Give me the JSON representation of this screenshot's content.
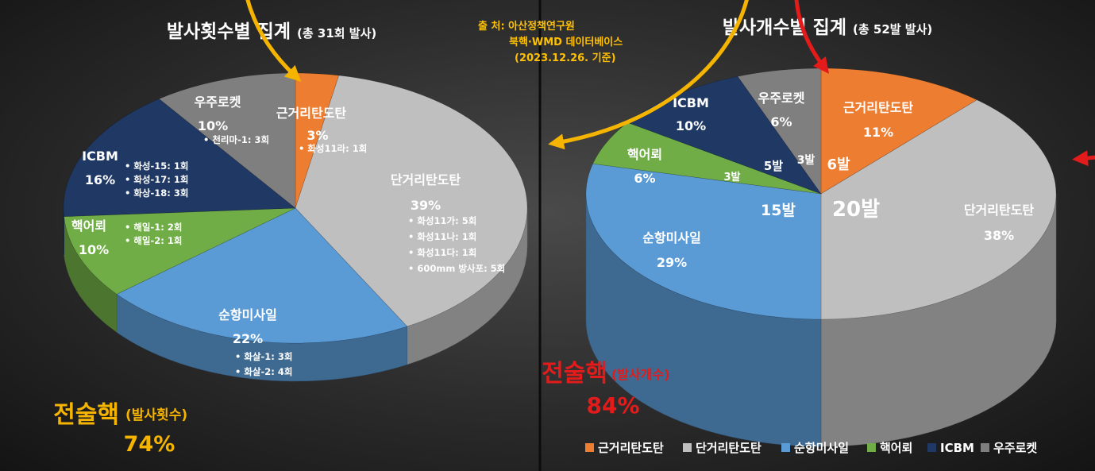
{
  "source": {
    "line1": "출  처: 아산정책연구원",
    "line2": "북핵·WMD 데이터베이스",
    "line3": "(2023.12.26. 기준)"
  },
  "legend": [
    "근거리탄도탄",
    "단거리탄도탄",
    "순항미사일",
    "핵어뢰",
    "ICBM",
    "우주로켓"
  ],
  "colors": {
    "srbm_short": "#ed7d31",
    "srbm": "#bfbfbf",
    "cruise": "#5b9bd5",
    "torpedo": "#70ad47",
    "icbm": "#1f3864",
    "space": "#7f7f7f",
    "title": "#ffffff",
    "source": "#ffc000",
    "arrow_left": "#f5b400",
    "arrow_right": "#e31b1b"
  },
  "chart_data": [
    {
      "type": "pie",
      "title": "발사횟수별 집계",
      "subtitle": "(총 31회 발사)",
      "slices": [
        {
          "label": "근거리탄도탄",
          "pct_label": "3%",
          "value": 3,
          "items": [
            "화성11라: 1회"
          ]
        },
        {
          "label": "단거리탄도탄",
          "pct_label": "39%",
          "value": 39,
          "items": [
            "화성11가: 5회",
            "화성11나: 1회",
            "화성11다: 1회",
            "600mm 방사포: 5회"
          ]
        },
        {
          "label": "순항미사일",
          "pct_label": "22%",
          "value": 22,
          "items": [
            "화살-1: 3회",
            "화살-2: 4회"
          ]
        },
        {
          "label": "핵어뢰",
          "pct_label": "10%",
          "value": 10,
          "items": [
            "해일-1: 2회",
            "해일-2: 1회"
          ]
        },
        {
          "label": "ICBM",
          "pct_label": "16%",
          "value": 16,
          "items": [
            "화성-15: 1회",
            "화성-17: 1회",
            "화상-18: 3회"
          ]
        },
        {
          "label": "우주로켓",
          "pct_label": "10%",
          "value": 10,
          "items": [
            "천리마-1: 3회"
          ]
        }
      ],
      "callout": {
        "main": "전술핵",
        "sub": "(발사횟수)",
        "value": "74%"
      }
    },
    {
      "type": "pie",
      "title": "발사개수별 집계",
      "subtitle": "(총 52발 발사)",
      "slices": [
        {
          "label": "근거리탄도탄",
          "pct_label": "11%",
          "value": 6,
          "count_label": "6발"
        },
        {
          "label": "단거리탄도탄",
          "pct_label": "38%",
          "value": 20,
          "count_label": "20발"
        },
        {
          "label": "순항미사일",
          "pct_label": "29%",
          "value": 15,
          "count_label": "15발"
        },
        {
          "label": "핵어뢰",
          "pct_label": "6%",
          "value": 3,
          "count_label": "3발"
        },
        {
          "label": "ICBM",
          "pct_label": "10%",
          "value": 5,
          "count_label": "5발"
        },
        {
          "label": "우주로켓",
          "pct_label": "6%",
          "value": 3,
          "count_label": "3발"
        }
      ],
      "callout": {
        "main": "전술핵",
        "sub": "(발사개수)",
        "value": "84%"
      }
    }
  ]
}
